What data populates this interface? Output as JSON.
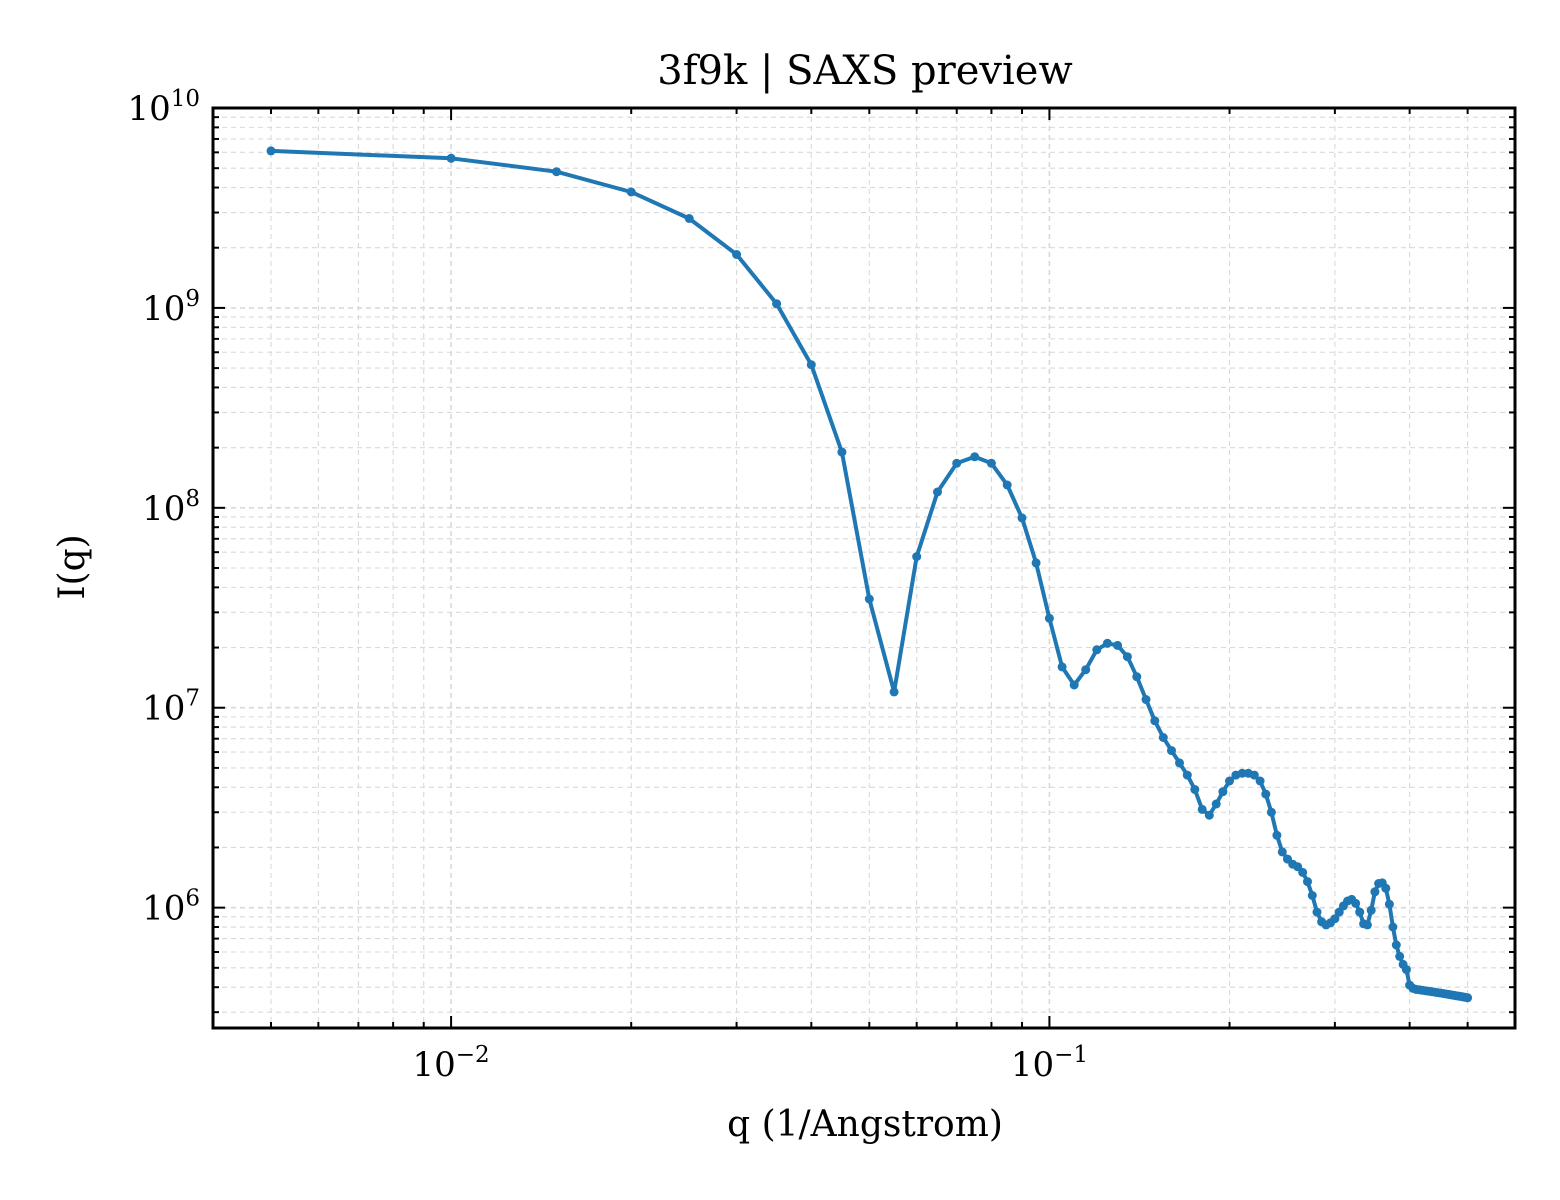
{
  "chart_data": {
    "type": "line",
    "title": "3f9k | SAXS preview",
    "xlabel": "q (1/Angstrom)",
    "ylabel": "I(q)",
    "xscale": "log",
    "yscale": "log",
    "xlim": [
      0.004,
      0.6
    ],
    "ylim": [
      250000,
      10000000000
    ],
    "grid": true,
    "colors": {
      "line": "#1f77b4",
      "grid": "#d9d9d9",
      "axes": "#000000"
    },
    "x_ticks": [
      {
        "base": "10",
        "exp": "−2",
        "value": 0.01
      },
      {
        "base": "10",
        "exp": "−1",
        "value": 0.1
      }
    ],
    "y_ticks": [
      {
        "base": "10",
        "exp": "6",
        "value": 1000000
      },
      {
        "base": "10",
        "exp": "7",
        "value": 10000000
      },
      {
        "base": "10",
        "exp": "8",
        "value": 100000000
      },
      {
        "base": "10",
        "exp": "9",
        "value": 1000000000
      },
      {
        "base": "10",
        "exp": "10",
        "value": 10000000000
      }
    ],
    "series": [
      {
        "x": [
          0.005,
          0.01,
          0.015,
          0.02,
          0.025,
          0.03,
          0.035,
          0.04,
          0.045,
          0.05,
          0.055,
          0.06,
          0.065,
          0.07,
          0.075,
          0.08,
          0.085,
          0.09,
          0.095,
          0.1,
          0.105,
          0.11,
          0.115,
          0.12,
          0.125,
          0.13,
          0.135,
          0.14,
          0.145,
          0.15,
          0.155,
          0.16,
          0.165,
          0.17,
          0.175,
          0.18,
          0.185,
          0.19,
          0.195,
          0.2,
          0.205,
          0.21,
          0.215,
          0.22,
          0.225,
          0.23,
          0.235,
          0.24,
          0.245,
          0.25,
          0.255,
          0.26,
          0.265,
          0.27,
          0.275,
          0.28,
          0.285,
          0.29,
          0.295,
          0.3,
          0.305,
          0.31,
          0.315,
          0.32,
          0.325,
          0.33,
          0.335,
          0.34,
          0.345,
          0.35,
          0.355,
          0.36,
          0.365,
          0.37,
          0.375,
          0.38,
          0.385,
          0.39,
          0.395,
          0.4,
          0.405,
          0.41,
          0.415,
          0.42,
          0.425,
          0.43,
          0.435,
          0.44,
          0.445,
          0.45,
          0.455,
          0.46,
          0.465,
          0.47,
          0.475,
          0.48,
          0.485,
          0.49,
          0.495,
          0.5
        ],
        "y": [
          6100000000,
          5600000000,
          4800000000,
          3800000000,
          2800000000,
          1850000000,
          1050000000,
          520000000,
          190000000,
          35000000,
          12000000,
          57000000,
          120000000,
          167000000,
          180000000,
          167000000,
          130000000,
          89000000,
          53000000,
          28000000,
          16000000,
          13000000,
          15500000,
          19500000,
          21000000,
          20500000,
          18000000,
          14300000,
          11000000,
          8600000,
          7100000,
          6100000,
          5300000,
          4600000,
          3900000,
          3100000,
          2900000,
          3300000,
          3800000,
          4300000,
          4600000,
          4700000,
          4700000,
          4600000,
          4300000,
          3700000,
          3000000,
          2300000,
          1900000,
          1750000,
          1650000,
          1600000,
          1500000,
          1350000,
          1150000,
          950000,
          850000,
          820000,
          840000,
          880000,
          950000,
          1020000,
          1080000,
          1100000,
          1050000,
          950000,
          830000,
          820000,
          970000,
          1200000,
          1320000,
          1330000,
          1250000,
          1040000,
          800000,
          650000,
          570000,
          520000,
          490000,
          410000,
          395000,
          390000,
          388000,
          386000,
          384000,
          382000,
          380000,
          378000,
          376000,
          374000,
          372000,
          370000,
          368000,
          366000,
          364000,
          362000,
          360000,
          358000,
          356000,
          354000
        ]
      }
    ]
  }
}
